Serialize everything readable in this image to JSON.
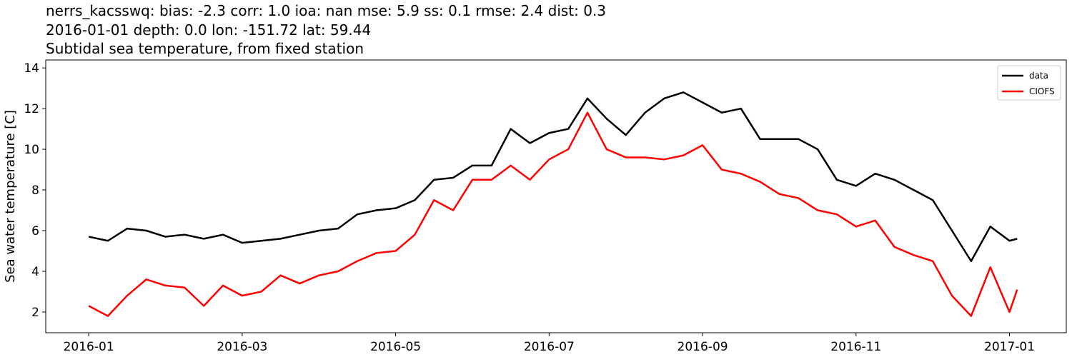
{
  "chart_data": {
    "type": "line",
    "title_lines": [
      "nerrs_kacsswq: bias: -2.3  corr: 1.0  ioa: nan  mse: 5.9  ss: 0.1  rmse: 2.4  dist: 0.3",
      "2016-01-01 depth: 0.0 lon: -151.72 lat: 59.44",
      "Subtidal sea temperature, from fixed station"
    ],
    "ylabel": "Sea water temperature [C]",
    "x": [
      0,
      0.25,
      0.5,
      0.75,
      1,
      1.25,
      1.5,
      1.75,
      2,
      2.25,
      2.5,
      2.75,
      3,
      3.25,
      3.5,
      3.75,
      4,
      4.25,
      4.5,
      4.75,
      5,
      5.25,
      5.5,
      5.75,
      6,
      6.25,
      6.5,
      6.75,
      7,
      7.25,
      7.5,
      7.75,
      8,
      8.25,
      8.5,
      8.75,
      9,
      9.25,
      9.5,
      9.75,
      10,
      10.25,
      10.5,
      10.75,
      11,
      11.25,
      11.5,
      11.75,
      12,
      12.1
    ],
    "series": [
      {
        "name": "data",
        "color": "#000000",
        "values": [
          5.7,
          5.5,
          6.1,
          6.0,
          5.7,
          5.8,
          5.6,
          5.8,
          5.4,
          5.5,
          5.6,
          5.8,
          6.0,
          6.1,
          6.8,
          7.0,
          7.1,
          7.5,
          8.5,
          8.6,
          9.2,
          9.2,
          11.0,
          10.3,
          10.8,
          11.0,
          12.5,
          11.5,
          10.7,
          11.8,
          12.5,
          12.8,
          12.3,
          11.8,
          12.0,
          10.5,
          10.5,
          10.5,
          10.0,
          8.5,
          8.2,
          8.8,
          8.5,
          8.0,
          7.5,
          6.0,
          4.5,
          6.2,
          5.5,
          5.6
        ]
      },
      {
        "name": "CIOFS",
        "color": "#ff0000",
        "values": [
          2.3,
          1.8,
          2.8,
          3.6,
          3.3,
          3.2,
          2.3,
          3.3,
          2.8,
          3.0,
          3.8,
          3.4,
          3.8,
          4.0,
          4.5,
          4.9,
          5.0,
          5.8,
          7.5,
          7.0,
          8.5,
          8.5,
          9.2,
          8.5,
          9.5,
          10.0,
          11.8,
          10.0,
          9.6,
          9.6,
          9.5,
          9.7,
          10.2,
          9.0,
          8.8,
          8.4,
          7.8,
          7.6,
          7.0,
          6.8,
          6.2,
          6.5,
          5.2,
          4.8,
          4.5,
          2.8,
          1.8,
          4.2,
          2.0,
          3.1
        ]
      }
    ],
    "xlim": [
      -0.56,
      12.74
    ],
    "xticks": [
      {
        "value": 0,
        "label": "2016-01"
      },
      {
        "value": 2,
        "label": "2016-03"
      },
      {
        "value": 4,
        "label": "2016-05"
      },
      {
        "value": 6,
        "label": "2016-07"
      },
      {
        "value": 8,
        "label": "2016-09"
      },
      {
        "value": 10,
        "label": "2016-11"
      },
      {
        "value": 12,
        "label": "2017-01"
      }
    ],
    "ylim": [
      0.98,
      14.39
    ],
    "yticks": [
      2,
      4,
      6,
      8,
      10,
      12,
      14
    ],
    "legend": "upper right"
  }
}
